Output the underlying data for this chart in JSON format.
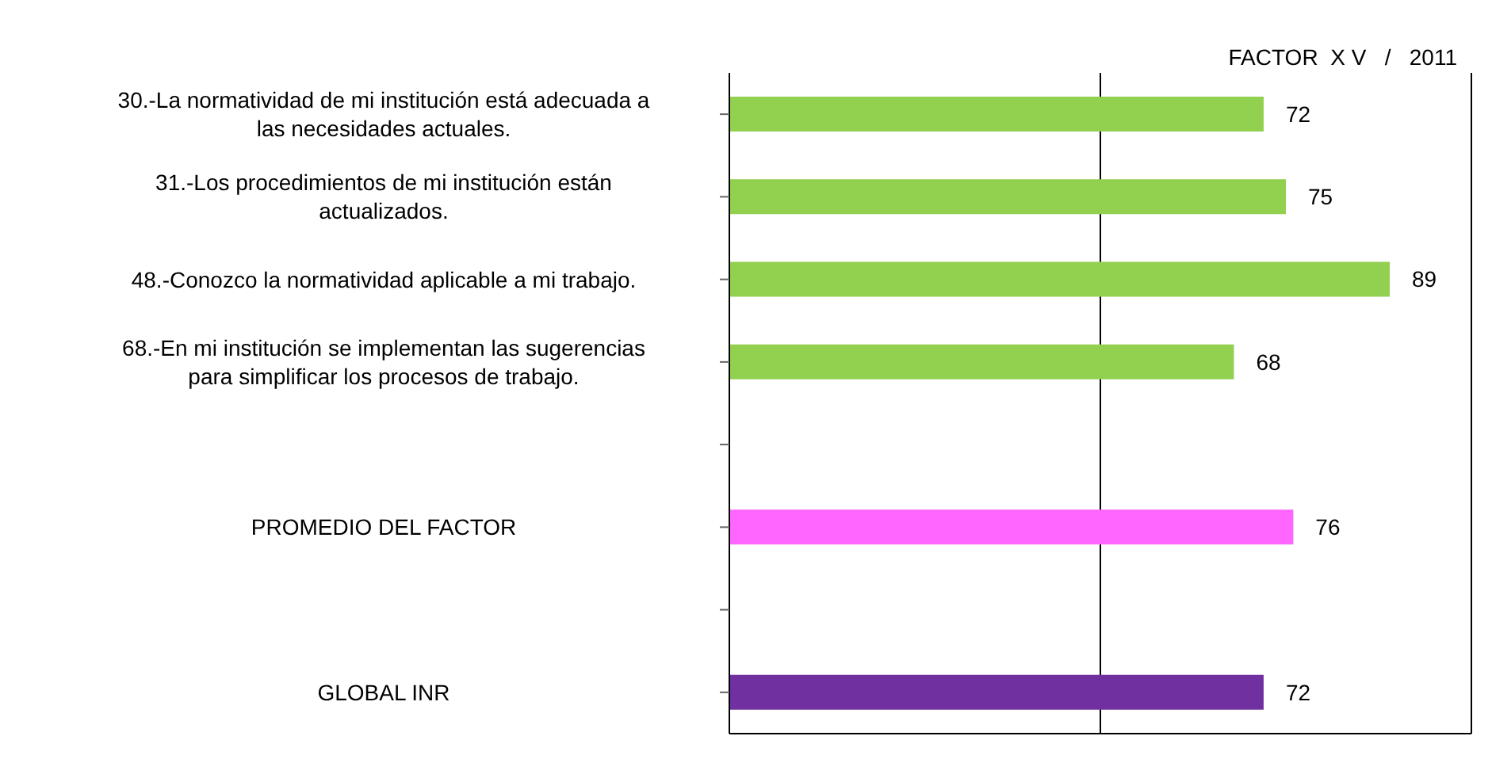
{
  "chart_data": {
    "type": "bar",
    "orientation": "horizontal",
    "title": "FACTOR  X V   /   2011",
    "categories": [
      "30.-La normatividad de mi institución está adecuada a las necesidades actuales.",
      "31.-Los procedimientos de mi institución están actualizados.",
      "48.-Conozco la normatividad aplicable a mi trabajo.",
      "68.-En mi institución se implementan las sugerencias para simplificar los procesos de trabajo.",
      null,
      "PROMEDIO DEL FACTOR",
      null,
      "GLOBAL INR"
    ],
    "values": [
      72,
      75,
      89,
      68,
      null,
      76,
      null,
      72
    ],
    "colors": [
      "#92d050",
      "#92d050",
      "#92d050",
      "#92d050",
      "#92d050",
      "#ff66ff",
      "#7030a0",
      "#7030a0"
    ],
    "xlim": [
      0,
      100
    ],
    "xticks": [
      {
        "value": 50,
        "label": null
      }
    ],
    "grid": "x",
    "tick_labels": "y",
    "data_labels": true
  }
}
